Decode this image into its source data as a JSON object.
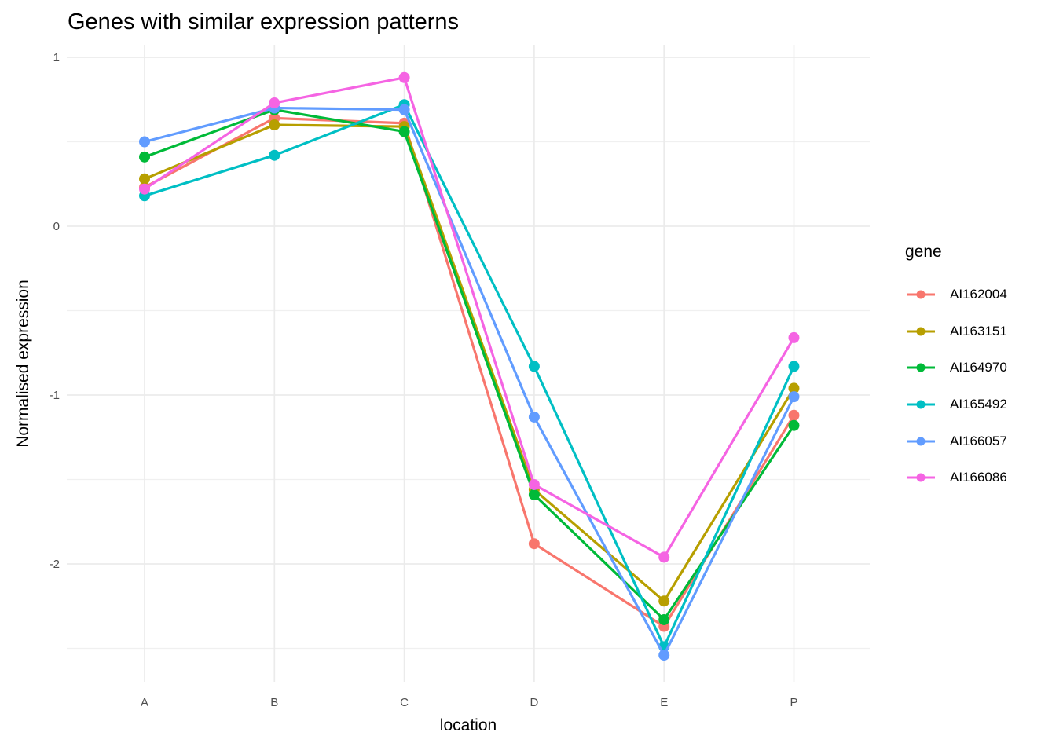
{
  "chart_data": {
    "type": "line",
    "title": "Genes with similar expression patterns",
    "xlabel": "location",
    "ylabel": "Normalised expression",
    "legend_title": "gene",
    "legend_position": "right",
    "categories": [
      "A",
      "B",
      "C",
      "D",
      "E",
      "P"
    ],
    "y_tick_labels": [
      "1",
      "0",
      "-1",
      "-2"
    ],
    "y_tick_values": [
      1,
      0,
      -1,
      -2
    ],
    "y_minor_gridlines": [
      0.5,
      -0.5,
      -1.5,
      -2.5
    ],
    "ylim": [
      -2.72,
      1.07
    ],
    "grid": "horizontal major+minor, vertical major at categories",
    "background": "#FFFFFF",
    "grid_color": "#EBEBEB",
    "series": [
      {
        "name": "AI162004",
        "color": "#F8766D",
        "values": [
          0.23,
          0.64,
          0.61,
          -1.88,
          -2.37,
          -1.12
        ]
      },
      {
        "name": "AI163151",
        "color": "#B79F00",
        "values": [
          0.28,
          0.6,
          0.59,
          -1.56,
          -2.22,
          -0.96
        ]
      },
      {
        "name": "AI164970",
        "color": "#00BA38",
        "values": [
          0.41,
          0.69,
          0.56,
          -1.59,
          -2.33,
          -1.18
        ]
      },
      {
        "name": "AI165492",
        "color": "#00BFC4",
        "values": [
          0.18,
          0.42,
          0.72,
          -0.83,
          -2.49,
          -0.83
        ]
      },
      {
        "name": "AI166057",
        "color": "#619CFF",
        "values": [
          0.5,
          0.7,
          0.69,
          -1.13,
          -2.54,
          -1.01
        ]
      },
      {
        "name": "AI166086",
        "color": "#F564E3",
        "values": [
          0.22,
          0.73,
          0.88,
          -1.53,
          -1.96,
          -0.66
        ]
      }
    ]
  }
}
